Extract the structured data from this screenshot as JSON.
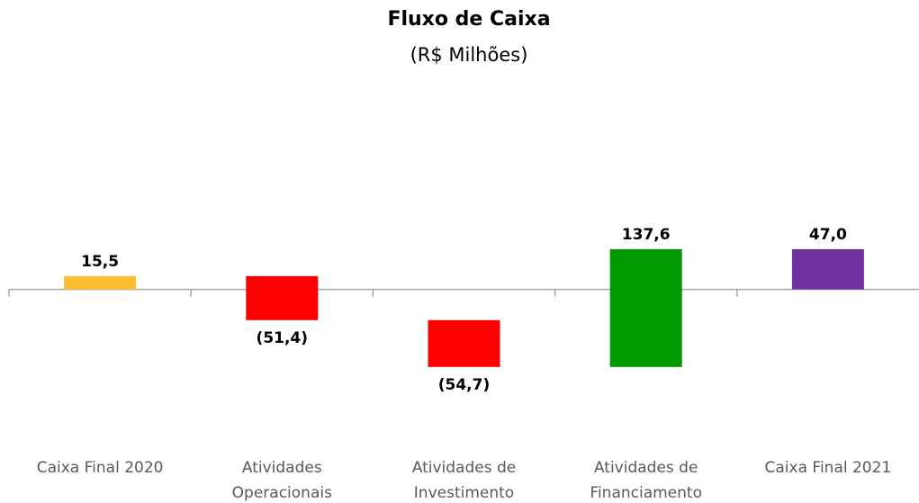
{
  "chart_data": {
    "type": "waterfall",
    "title": "Fluxo de Caixa",
    "subtitle": "(R$ Milhões)",
    "categories": [
      [
        "Caixa Final 2020"
      ],
      [
        "Atividades",
        "Operacionais"
      ],
      [
        "Atividades de",
        "Investimento"
      ],
      [
        "Atividades de",
        "Financiamento"
      ],
      [
        "Caixa Final 2021"
      ]
    ],
    "values": [
      15.5,
      -51.4,
      -54.7,
      137.6,
      47.0
    ],
    "value_labels": [
      "15,5",
      "(51,4)",
      "(54,7)",
      "137,6",
      "47,0"
    ],
    "is_total": [
      true,
      false,
      false,
      false,
      true
    ],
    "colors": [
      "#fbbf2e",
      "#ff0000",
      "#ff0000",
      "#009900",
      "#7030a0"
    ],
    "ylim": [
      -177,
      233
    ]
  }
}
